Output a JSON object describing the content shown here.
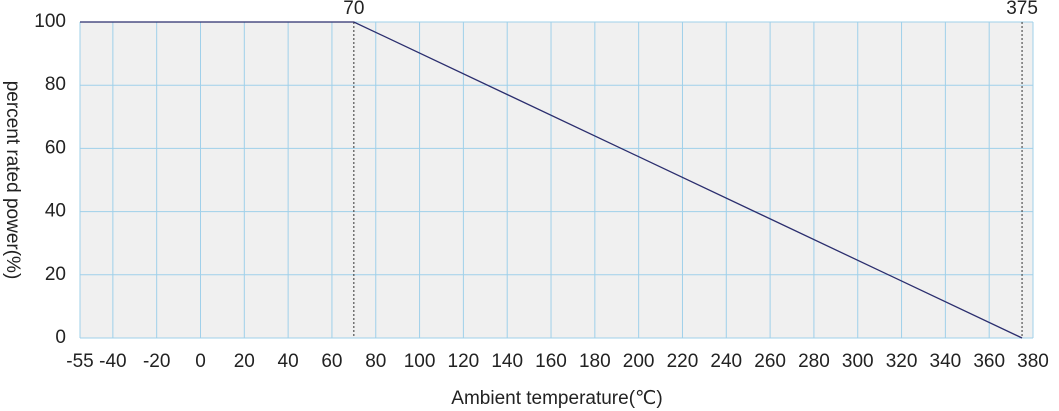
{
  "chart_data": {
    "type": "line",
    "x_label": "Ambient temperature(℃)",
    "y_label": "percent rated power(%)",
    "x": [
      -55,
      70,
      375
    ],
    "series": [
      {
        "color": "#2b2e6e",
        "values": [
          100,
          100,
          0
        ]
      }
    ],
    "xlim": [
      -55,
      380
    ],
    "xticks": [
      -55,
      -40,
      -20,
      0,
      20,
      40,
      60,
      80,
      100,
      120,
      140,
      160,
      180,
      200,
      220,
      240,
      260,
      280,
      300,
      320,
      340,
      360,
      380
    ],
    "ylim": [
      0,
      100
    ],
    "yticks": [
      0,
      20,
      40,
      60,
      80,
      100
    ],
    "markers": [
      70,
      375
    ],
    "grid": true,
    "grid_color": "#9fd0ea",
    "plot_background": "#f0f0f0"
  }
}
